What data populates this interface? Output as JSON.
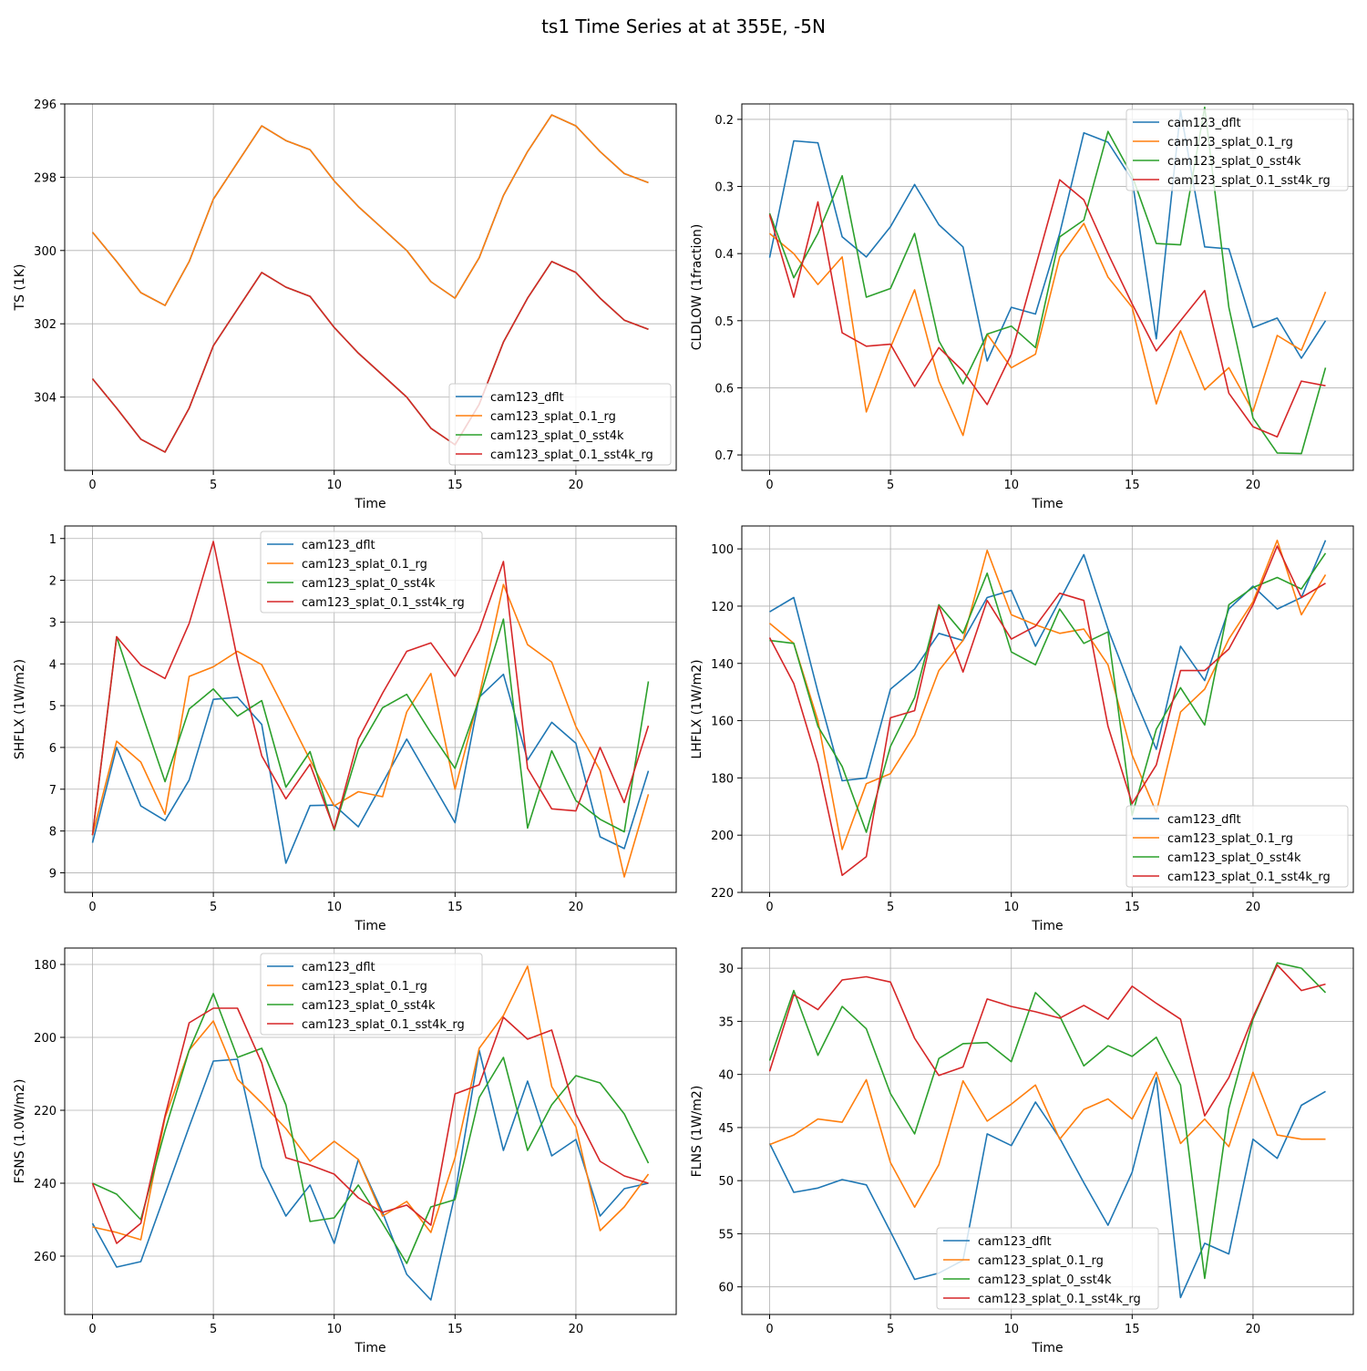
{
  "figure": {
    "title": "ts1 Time Series at at 355E, -5N"
  },
  "colors": {
    "cam123_dflt": "#1f77b4",
    "cam123_splat_0.1_rg": "#ff7f0e",
    "cam123_splat_0_sst4k": "#2ca02c",
    "cam123_splat_0.1_sst4k_rg": "#d62728",
    "grid": "#b0b0b0"
  },
  "chart_data": [
    {
      "type": "line",
      "title": "",
      "xlabel": "Time",
      "ylabel": "TS (1K)",
      "xlim": [
        -1.15,
        24.15
      ],
      "ylim": [
        296,
        306
      ],
      "y_inverted": true,
      "xticks": [
        0,
        5,
        10,
        15,
        20
      ],
      "yticks": [
        296,
        298,
        300,
        302,
        304
      ],
      "legend_position": "lower-right",
      "x": [
        0,
        1,
        2,
        3,
        4,
        5,
        6,
        7,
        8,
        9,
        10,
        11,
        12,
        13,
        14,
        15,
        16,
        17,
        18,
        19,
        20,
        21,
        22,
        23
      ],
      "series": [
        {
          "name": "cam123_dflt",
          "color": "#1f77b4",
          "values": [
            299.5,
            300.3,
            301.15,
            301.5,
            300.3,
            298.6,
            297.6,
            296.6,
            297.0,
            297.25,
            298.1,
            298.8,
            299.4,
            300.0,
            300.85,
            301.3,
            300.2,
            298.5,
            297.3,
            296.3,
            296.6,
            297.3,
            297.9,
            298.15
          ]
        },
        {
          "name": "cam123_splat_0.1_rg",
          "color": "#ff7f0e",
          "values": [
            299.5,
            300.3,
            301.15,
            301.5,
            300.3,
            298.6,
            297.6,
            296.6,
            297.0,
            297.25,
            298.1,
            298.8,
            299.4,
            300.0,
            300.85,
            301.3,
            300.2,
            298.5,
            297.3,
            296.3,
            296.6,
            297.3,
            297.9,
            298.15
          ]
        },
        {
          "name": "cam123_splat_0_sst4k",
          "color": "#2ca02c",
          "values": [
            303.5,
            304.3,
            305.15,
            305.5,
            304.3,
            302.6,
            301.6,
            300.6,
            301.0,
            301.25,
            302.1,
            302.8,
            303.4,
            304.0,
            304.85,
            305.3,
            304.2,
            302.5,
            301.3,
            300.3,
            300.6,
            301.3,
            301.9,
            302.15
          ]
        },
        {
          "name": "cam123_splat_0.1_sst4k_rg",
          "color": "#d62728",
          "values": [
            303.5,
            304.3,
            305.15,
            305.5,
            304.3,
            302.6,
            301.6,
            300.6,
            301.0,
            301.25,
            302.1,
            302.8,
            303.4,
            304.0,
            304.85,
            305.3,
            304.2,
            302.5,
            301.3,
            300.3,
            300.6,
            301.3,
            301.9,
            302.15
          ]
        }
      ]
    },
    {
      "type": "line",
      "title": "",
      "xlabel": "Time",
      "ylabel": "CLDLOW (1fraction)",
      "xlim": [
        -1.15,
        24.15
      ],
      "ylim": [
        0.177,
        0.723
      ],
      "y_inverted": true,
      "xticks": [
        0,
        5,
        10,
        15,
        20
      ],
      "yticks": [
        0.2,
        0.3,
        0.4,
        0.5,
        0.6,
        0.7
      ],
      "legend_position": "upper-right",
      "x": [
        0,
        1,
        2,
        3,
        4,
        5,
        6,
        7,
        8,
        9,
        10,
        11,
        12,
        13,
        14,
        15,
        16,
        17,
        18,
        19,
        20,
        21,
        22,
        23
      ],
      "series": [
        {
          "name": "cam123_dflt",
          "color": "#1f77b4",
          "values": [
            0.406,
            0.232,
            0.235,
            0.375,
            0.405,
            0.36,
            0.297,
            0.357,
            0.39,
            0.56,
            0.48,
            0.49,
            0.37,
            0.22,
            0.234,
            0.29,
            0.527,
            0.187,
            0.39,
            0.393,
            0.51,
            0.496,
            0.556,
            0.5
          ]
        },
        {
          "name": "cam123_splat_0.1_rg",
          "color": "#ff7f0e",
          "values": [
            0.37,
            0.4,
            0.446,
            0.405,
            0.636,
            0.54,
            0.454,
            0.59,
            0.671,
            0.52,
            0.57,
            0.55,
            0.405,
            0.355,
            0.435,
            0.48,
            0.624,
            0.515,
            0.603,
            0.57,
            0.635,
            0.522,
            0.544,
            0.457
          ]
        },
        {
          "name": "cam123_splat_0_sst4k",
          "color": "#2ca02c",
          "values": [
            0.34,
            0.436,
            0.37,
            0.284,
            0.465,
            0.452,
            0.37,
            0.53,
            0.594,
            0.52,
            0.508,
            0.54,
            0.375,
            0.35,
            0.218,
            0.284,
            0.385,
            0.387,
            0.182,
            0.48,
            0.645,
            0.697,
            0.698,
            0.57
          ]
        },
        {
          "name": "cam123_splat_0.1_sst4k_rg",
          "color": "#d62728",
          "values": [
            0.342,
            0.465,
            0.323,
            0.518,
            0.538,
            0.535,
            0.598,
            0.54,
            0.575,
            0.625,
            0.55,
            0.42,
            0.29,
            0.32,
            0.4,
            0.475,
            0.545,
            0.5,
            0.455,
            0.608,
            0.658,
            0.673,
            0.59,
            0.597
          ]
        }
      ]
    },
    {
      "type": "line",
      "title": "",
      "xlabel": "Time",
      "ylabel": "SHFLX (1W/m2)",
      "xlim": [
        -1.15,
        24.15
      ],
      "ylim": [
        0.7,
        9.47
      ],
      "y_inverted": true,
      "xticks": [
        0,
        5,
        10,
        15,
        20
      ],
      "yticks": [
        1,
        2,
        3,
        4,
        5,
        6,
        7,
        8,
        9
      ],
      "legend_position": "upper-center",
      "x": [
        0,
        1,
        2,
        3,
        4,
        5,
        6,
        7,
        8,
        9,
        10,
        11,
        12,
        13,
        14,
        15,
        16,
        17,
        18,
        19,
        20,
        21,
        22,
        23
      ],
      "series": [
        {
          "name": "cam123_dflt",
          "color": "#1f77b4",
          "values": [
            8.28,
            6.0,
            7.4,
            7.75,
            6.78,
            4.85,
            4.8,
            5.45,
            8.77,
            7.39,
            7.38,
            7.9,
            6.85,
            5.8,
            6.8,
            7.8,
            4.8,
            4.25,
            6.3,
            5.4,
            5.9,
            8.14,
            8.42,
            6.56
          ]
        },
        {
          "name": "cam123_splat_0.1_rg",
          "color": "#ff7f0e",
          "values": [
            8.1,
            5.85,
            6.35,
            7.6,
            4.3,
            4.07,
            3.7,
            4.02,
            5.15,
            6.3,
            7.4,
            7.06,
            7.18,
            5.15,
            4.23,
            7.0,
            4.77,
            2.1,
            3.54,
            3.96,
            5.5,
            6.55,
            9.1,
            7.12
          ]
        },
        {
          "name": "cam123_splat_0_sst4k",
          "color": "#2ca02c",
          "values": [
            8.1,
            3.35,
            5.1,
            6.82,
            5.08,
            4.6,
            5.25,
            4.88,
            6.95,
            6.1,
            7.98,
            6.05,
            5.05,
            4.73,
            5.65,
            6.5,
            4.85,
            2.93,
            7.93,
            6.08,
            7.27,
            7.72,
            8.02,
            4.42
          ]
        },
        {
          "name": "cam123_splat_0.1_sst4k_rg",
          "color": "#d62728",
          "values": [
            8.1,
            3.35,
            4.03,
            4.35,
            3.03,
            1.07,
            3.9,
            6.2,
            7.23,
            6.4,
            7.95,
            5.8,
            4.7,
            3.7,
            3.5,
            4.3,
            3.2,
            1.55,
            6.5,
            7.47,
            7.52,
            6.0,
            7.32,
            5.48
          ]
        }
      ]
    },
    {
      "type": "line",
      "title": "",
      "xlabel": "Time",
      "ylabel": "LHFLX (1W/m2)",
      "xlim": [
        -1.15,
        24.15
      ],
      "ylim": [
        92,
        220
      ],
      "y_inverted": true,
      "xticks": [
        0,
        5,
        10,
        15,
        20
      ],
      "yticks": [
        100,
        120,
        140,
        160,
        180,
        200,
        220
      ],
      "legend_position": "lower-right",
      "x": [
        0,
        1,
        2,
        3,
        4,
        5,
        6,
        7,
        8,
        9,
        10,
        11,
        12,
        13,
        14,
        15,
        16,
        17,
        18,
        19,
        20,
        21,
        22,
        23
      ],
      "series": [
        {
          "name": "cam123_dflt",
          "color": "#1f77b4",
          "values": [
            122,
            117,
            150,
            181,
            180,
            149,
            142,
            129.5,
            132,
            117,
            114.5,
            134,
            118,
            102,
            128,
            150,
            170,
            134,
            146,
            121,
            113,
            121,
            117,
            97
          ]
        },
        {
          "name": "cam123_splat_0.1_rg",
          "color": "#ff7f0e",
          "values": [
            126,
            133,
            160,
            205,
            182,
            178.5,
            165,
            142.5,
            132,
            100.5,
            123,
            126.5,
            129.5,
            128,
            140.5,
            172,
            192,
            157,
            149,
            131.5,
            118.5,
            97,
            123,
            109
          ]
        },
        {
          "name": "cam123_splat_0_sst4k",
          "color": "#2ca02c",
          "values": [
            132,
            133,
            162,
            176,
            199,
            169,
            152,
            119.5,
            129.5,
            108.5,
            136,
            140.5,
            121,
            133,
            129,
            193,
            163,
            148.5,
            161.5,
            119.5,
            113.5,
            110,
            114,
            101.5
          ]
        },
        {
          "name": "cam123_splat_0.1_sst4k_rg",
          "color": "#d62728",
          "values": [
            131,
            147,
            175,
            214,
            207.5,
            159,
            156.5,
            120,
            143,
            118,
            131.5,
            127,
            115.5,
            118,
            162,
            189,
            175.5,
            142.5,
            142.5,
            135,
            119.5,
            99,
            117,
            112
          ]
        }
      ]
    },
    {
      "type": "line",
      "title": "",
      "xlabel": "Time",
      "ylabel": "FSNS (1.0W/m2)",
      "xlim": [
        -1.15,
        24.15
      ],
      "ylim": [
        175.5,
        276
      ],
      "y_inverted": true,
      "xticks": [
        0,
        5,
        10,
        15,
        20
      ],
      "yticks": [
        180,
        200,
        220,
        240,
        260
      ],
      "legend_position": "upper-center",
      "x": [
        0,
        1,
        2,
        3,
        4,
        5,
        6,
        7,
        8,
        9,
        10,
        11,
        12,
        13,
        14,
        15,
        16,
        17,
        18,
        19,
        20,
        21,
        22,
        23
      ],
      "series": [
        {
          "name": "cam123_dflt",
          "color": "#1f77b4",
          "values": [
            251,
            263,
            261.5,
            243,
            224.5,
            206.5,
            206,
            235.5,
            249,
            240.5,
            256.5,
            233.5,
            248,
            265,
            272,
            243,
            203.5,
            231,
            212,
            232.5,
            228,
            249,
            241.5,
            240
          ]
        },
        {
          "name": "cam123_splat_0.1_rg",
          "color": "#ff7f0e",
          "values": [
            252,
            253.5,
            255.5,
            222,
            203.5,
            195.5,
            211.5,
            218,
            225,
            234,
            228.5,
            233.5,
            249,
            245,
            253.5,
            233,
            203,
            194,
            180.5,
            213.5,
            224.5,
            253,
            246.5,
            237.5
          ]
        },
        {
          "name": "cam123_splat_0_sst4k",
          "color": "#2ca02c",
          "values": [
            240,
            243,
            250,
            225.5,
            203.5,
            188,
            205.5,
            203,
            218.5,
            250.5,
            249.5,
            240.5,
            251,
            262,
            246.5,
            244.5,
            216.5,
            205.5,
            231,
            218.5,
            210.5,
            212.5,
            221,
            234.5
          ]
        },
        {
          "name": "cam123_splat_0.1_sst4k_rg",
          "color": "#d62728",
          "values": [
            240,
            256.5,
            251,
            221.5,
            196,
            192,
            192,
            207,
            233,
            235,
            237.5,
            244,
            248,
            246,
            251.5,
            215.5,
            213,
            194.5,
            200.5,
            198,
            221,
            234,
            238,
            240
          ]
        }
      ]
    },
    {
      "type": "line",
      "title": "",
      "xlabel": "Time",
      "ylabel": "FLNS (1W/m2)",
      "xlim": [
        -1.15,
        24.15
      ],
      "ylim": [
        28.1,
        62.6
      ],
      "y_inverted": true,
      "xticks": [
        0,
        5,
        10,
        15,
        20
      ],
      "yticks": [
        30,
        35,
        40,
        45,
        50,
        55,
        60
      ],
      "legend_position": "lower-center",
      "x": [
        0,
        1,
        2,
        3,
        4,
        5,
        6,
        7,
        8,
        9,
        10,
        11,
        12,
        13,
        14,
        15,
        16,
        17,
        18,
        19,
        20,
        21,
        22,
        23
      ],
      "series": [
        {
          "name": "cam123_dflt",
          "color": "#1f77b4",
          "values": [
            46.5,
            51.1,
            50.7,
            49.9,
            50.4,
            54.8,
            59.3,
            58.7,
            57.5,
            45.6,
            46.7,
            42.6,
            46.0,
            50.2,
            54.2,
            49.2,
            40.3,
            61.0,
            55.9,
            56.9,
            46.1,
            47.9,
            42.9,
            41.6
          ]
        },
        {
          "name": "cam123_splat_0.1_rg",
          "color": "#ff7f0e",
          "values": [
            46.6,
            45.7,
            44.2,
            44.5,
            40.5,
            48.3,
            52.5,
            48.5,
            40.6,
            44.4,
            42.8,
            41.0,
            46.1,
            43.3,
            42.3,
            44.2,
            39.8,
            46.5,
            44.2,
            46.8,
            39.8,
            45.7,
            46.1,
            46.1
          ]
        },
        {
          "name": "cam123_splat_0_sst4k",
          "color": "#2ca02c",
          "values": [
            38.7,
            32.1,
            38.2,
            33.6,
            35.7,
            41.8,
            45.6,
            38.5,
            37.1,
            37.0,
            38.8,
            32.3,
            34.5,
            39.2,
            37.3,
            38.3,
            36.5,
            41.0,
            59.2,
            43.2,
            34.8,
            29.5,
            30.0,
            32.3
          ]
        },
        {
          "name": "cam123_splat_0.1_sst4k_rg",
          "color": "#d62728",
          "values": [
            39.7,
            32.5,
            33.9,
            31.1,
            30.8,
            31.3,
            36.6,
            40.1,
            39.3,
            32.9,
            33.6,
            34.1,
            34.7,
            33.5,
            34.8,
            31.7,
            33.3,
            34.8,
            43.9,
            40.3,
            34.6,
            29.7,
            32.1,
            31.5
          ]
        }
      ]
    }
  ]
}
